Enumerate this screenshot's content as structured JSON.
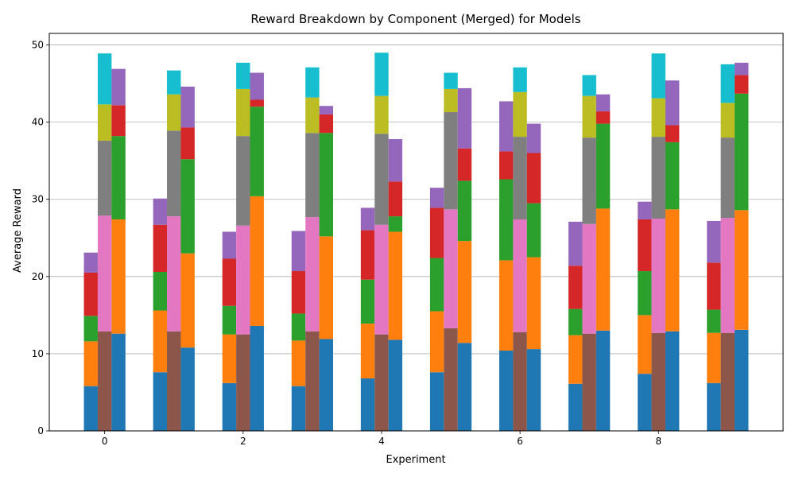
{
  "chart_data": {
    "type": "bar",
    "stacked": true,
    "title": "Reward Breakdown by Component (Merged) for Models",
    "xlabel": "Experiment",
    "ylabel": "Average Reward",
    "ylim": [
      0,
      51.5
    ],
    "xlim": [
      -0.8,
      9.8
    ],
    "yticks": [
      0,
      10,
      20,
      30,
      40,
      50
    ],
    "xticks": [
      0,
      2,
      4,
      6,
      8
    ],
    "grid": "y",
    "legend": "none",
    "experiments": [
      0,
      1,
      2,
      3,
      4,
      5,
      6,
      7,
      8,
      9
    ],
    "bar_offsets": [
      -0.2,
      0.0,
      0.2
    ],
    "bar_width": 0.2,
    "bars": [
      {
        "experiment": 0,
        "offset": -0.2,
        "segments": [
          {
            "color": "#1f77b4",
            "value": 5.8
          },
          {
            "color": "#ff7f0e",
            "value": 5.8
          },
          {
            "color": "#2ca02c",
            "value": 3.3
          },
          {
            "color": "#d62728",
            "value": 5.6
          },
          {
            "color": "#9467bd",
            "value": 2.6
          }
        ]
      },
      {
        "experiment": 0,
        "offset": 0.0,
        "segments": [
          {
            "color": "#8c564b",
            "value": 12.9
          },
          {
            "color": "#e377c2",
            "value": 15.0
          },
          {
            "color": "#7f7f7f",
            "value": 9.7
          },
          {
            "color": "#bcbd22",
            "value": 4.7
          },
          {
            "color": "#17becf",
            "value": 6.6
          }
        ]
      },
      {
        "experiment": 0,
        "offset": 0.2,
        "segments": [
          {
            "color": "#1f77b4",
            "value": 12.6
          },
          {
            "color": "#ff7f0e",
            "value": 14.8
          },
          {
            "color": "#2ca02c",
            "value": 10.8
          },
          {
            "color": "#d62728",
            "value": 4.0
          },
          {
            "color": "#9467bd",
            "value": 4.7
          }
        ]
      },
      {
        "experiment": 1,
        "offset": -0.2,
        "segments": [
          {
            "color": "#1f77b4",
            "value": 7.6
          },
          {
            "color": "#ff7f0e",
            "value": 8.0
          },
          {
            "color": "#2ca02c",
            "value": 5.0
          },
          {
            "color": "#d62728",
            "value": 6.1
          },
          {
            "color": "#9467bd",
            "value": 3.4
          }
        ]
      },
      {
        "experiment": 1,
        "offset": 0.0,
        "segments": [
          {
            "color": "#8c564b",
            "value": 12.9
          },
          {
            "color": "#e377c2",
            "value": 14.9
          },
          {
            "color": "#7f7f7f",
            "value": 11.1
          },
          {
            "color": "#bcbd22",
            "value": 4.7
          },
          {
            "color": "#17becf",
            "value": 3.1
          }
        ]
      },
      {
        "experiment": 1,
        "offset": 0.2,
        "segments": [
          {
            "color": "#1f77b4",
            "value": 10.8
          },
          {
            "color": "#ff7f0e",
            "value": 12.2
          },
          {
            "color": "#2ca02c",
            "value": 12.2
          },
          {
            "color": "#d62728",
            "value": 4.1
          },
          {
            "color": "#9467bd",
            "value": 5.3
          }
        ]
      },
      {
        "experiment": 2,
        "offset": -0.2,
        "segments": [
          {
            "color": "#1f77b4",
            "value": 6.2
          },
          {
            "color": "#ff7f0e",
            "value": 6.3
          },
          {
            "color": "#2ca02c",
            "value": 3.7
          },
          {
            "color": "#d62728",
            "value": 6.1
          },
          {
            "color": "#9467bd",
            "value": 3.5
          }
        ]
      },
      {
        "experiment": 2,
        "offset": 0.0,
        "segments": [
          {
            "color": "#8c564b",
            "value": 12.5
          },
          {
            "color": "#e377c2",
            "value": 14.1
          },
          {
            "color": "#7f7f7f",
            "value": 11.6
          },
          {
            "color": "#bcbd22",
            "value": 6.1
          },
          {
            "color": "#17becf",
            "value": 3.4
          }
        ]
      },
      {
        "experiment": 2,
        "offset": 0.2,
        "segments": [
          {
            "color": "#1f77b4",
            "value": 13.6
          },
          {
            "color": "#ff7f0e",
            "value": 16.8
          },
          {
            "color": "#2ca02c",
            "value": 11.6
          },
          {
            "color": "#d62728",
            "value": 0.9
          },
          {
            "color": "#9467bd",
            "value": 3.5
          }
        ]
      },
      {
        "experiment": 3,
        "offset": -0.2,
        "segments": [
          {
            "color": "#1f77b4",
            "value": 5.8
          },
          {
            "color": "#ff7f0e",
            "value": 5.9
          },
          {
            "color": "#2ca02c",
            "value": 3.5
          },
          {
            "color": "#d62728",
            "value": 5.5
          },
          {
            "color": "#9467bd",
            "value": 5.2
          }
        ]
      },
      {
        "experiment": 3,
        "offset": 0.0,
        "segments": [
          {
            "color": "#8c564b",
            "value": 12.9
          },
          {
            "color": "#e377c2",
            "value": 14.8
          },
          {
            "color": "#7f7f7f",
            "value": 10.9
          },
          {
            "color": "#bcbd22",
            "value": 4.6
          },
          {
            "color": "#17becf",
            "value": 3.9
          }
        ]
      },
      {
        "experiment": 3,
        "offset": 0.2,
        "segments": [
          {
            "color": "#1f77b4",
            "value": 11.9
          },
          {
            "color": "#ff7f0e",
            "value": 13.3
          },
          {
            "color": "#2ca02c",
            "value": 13.4
          },
          {
            "color": "#d62728",
            "value": 2.4
          },
          {
            "color": "#9467bd",
            "value": 1.1
          }
        ]
      },
      {
        "experiment": 4,
        "offset": -0.2,
        "segments": [
          {
            "color": "#1f77b4",
            "value": 6.8
          },
          {
            "color": "#ff7f0e",
            "value": 7.1
          },
          {
            "color": "#2ca02c",
            "value": 5.7
          },
          {
            "color": "#d62728",
            "value": 6.4
          },
          {
            "color": "#9467bd",
            "value": 2.9
          }
        ]
      },
      {
        "experiment": 4,
        "offset": 0.0,
        "segments": [
          {
            "color": "#8c564b",
            "value": 12.5
          },
          {
            "color": "#e377c2",
            "value": 14.2
          },
          {
            "color": "#7f7f7f",
            "value": 11.8
          },
          {
            "color": "#bcbd22",
            "value": 4.9
          },
          {
            "color": "#17becf",
            "value": 5.6
          }
        ]
      },
      {
        "experiment": 4,
        "offset": 0.2,
        "segments": [
          {
            "color": "#1f77b4",
            "value": 11.8
          },
          {
            "color": "#ff7f0e",
            "value": 14.0
          },
          {
            "color": "#2ca02c",
            "value": 2.0
          },
          {
            "color": "#d62728",
            "value": 4.5
          },
          {
            "color": "#9467bd",
            "value": 5.5
          }
        ]
      },
      {
        "experiment": 5,
        "offset": -0.2,
        "segments": [
          {
            "color": "#1f77b4",
            "value": 7.6
          },
          {
            "color": "#ff7f0e",
            "value": 7.9
          },
          {
            "color": "#2ca02c",
            "value": 6.9
          },
          {
            "color": "#d62728",
            "value": 6.5
          },
          {
            "color": "#9467bd",
            "value": 2.6
          }
        ]
      },
      {
        "experiment": 5,
        "offset": 0.0,
        "segments": [
          {
            "color": "#8c564b",
            "value": 13.3
          },
          {
            "color": "#e377c2",
            "value": 15.4
          },
          {
            "color": "#7f7f7f",
            "value": 12.6
          },
          {
            "color": "#bcbd22",
            "value": 3.0
          },
          {
            "color": "#17becf",
            "value": 2.1
          }
        ]
      },
      {
        "experiment": 5,
        "offset": 0.2,
        "segments": [
          {
            "color": "#1f77b4",
            "value": 11.4
          },
          {
            "color": "#ff7f0e",
            "value": 13.2
          },
          {
            "color": "#2ca02c",
            "value": 7.8
          },
          {
            "color": "#d62728",
            "value": 4.2
          },
          {
            "color": "#9467bd",
            "value": 7.8
          }
        ]
      },
      {
        "experiment": 6,
        "offset": -0.2,
        "segments": [
          {
            "color": "#1f77b4",
            "value": 10.4
          },
          {
            "color": "#ff7f0e",
            "value": 11.7
          },
          {
            "color": "#2ca02c",
            "value": 10.5
          },
          {
            "color": "#d62728",
            "value": 3.6
          },
          {
            "color": "#9467bd",
            "value": 6.5
          }
        ]
      },
      {
        "experiment": 6,
        "offset": 0.0,
        "segments": [
          {
            "color": "#8c564b",
            "value": 12.8
          },
          {
            "color": "#e377c2",
            "value": 14.6
          },
          {
            "color": "#7f7f7f",
            "value": 10.7
          },
          {
            "color": "#bcbd22",
            "value": 5.8
          },
          {
            "color": "#17becf",
            "value": 3.2
          }
        ]
      },
      {
        "experiment": 6,
        "offset": 0.2,
        "segments": [
          {
            "color": "#1f77b4",
            "value": 10.6
          },
          {
            "color": "#ff7f0e",
            "value": 11.9
          },
          {
            "color": "#2ca02c",
            "value": 7.0
          },
          {
            "color": "#d62728",
            "value": 6.5
          },
          {
            "color": "#9467bd",
            "value": 3.8
          }
        ]
      },
      {
        "experiment": 7,
        "offset": -0.2,
        "segments": [
          {
            "color": "#1f77b4",
            "value": 6.1
          },
          {
            "color": "#ff7f0e",
            "value": 6.3
          },
          {
            "color": "#2ca02c",
            "value": 3.4
          },
          {
            "color": "#d62728",
            "value": 5.6
          },
          {
            "color": "#9467bd",
            "value": 5.7
          }
        ]
      },
      {
        "experiment": 7,
        "offset": 0.0,
        "segments": [
          {
            "color": "#8c564b",
            "value": 12.6
          },
          {
            "color": "#e377c2",
            "value": 14.2
          },
          {
            "color": "#7f7f7f",
            "value": 11.2
          },
          {
            "color": "#bcbd22",
            "value": 5.4
          },
          {
            "color": "#17becf",
            "value": 2.7
          }
        ]
      },
      {
        "experiment": 7,
        "offset": 0.2,
        "segments": [
          {
            "color": "#1f77b4",
            "value": 13.0
          },
          {
            "color": "#ff7f0e",
            "value": 15.8
          },
          {
            "color": "#2ca02c",
            "value": 11.0
          },
          {
            "color": "#d62728",
            "value": 1.6
          },
          {
            "color": "#9467bd",
            "value": 2.2
          }
        ]
      },
      {
        "experiment": 8,
        "offset": -0.2,
        "segments": [
          {
            "color": "#1f77b4",
            "value": 7.4
          },
          {
            "color": "#ff7f0e",
            "value": 7.6
          },
          {
            "color": "#2ca02c",
            "value": 5.7
          },
          {
            "color": "#d62728",
            "value": 6.7
          },
          {
            "color": "#9467bd",
            "value": 2.3
          }
        ]
      },
      {
        "experiment": 8,
        "offset": 0.0,
        "segments": [
          {
            "color": "#8c564b",
            "value": 12.7
          },
          {
            "color": "#e377c2",
            "value": 14.8
          },
          {
            "color": "#7f7f7f",
            "value": 10.6
          },
          {
            "color": "#bcbd22",
            "value": 5.0
          },
          {
            "color": "#17becf",
            "value": 5.8
          }
        ]
      },
      {
        "experiment": 8,
        "offset": 0.2,
        "segments": [
          {
            "color": "#1f77b4",
            "value": 12.9
          },
          {
            "color": "#ff7f0e",
            "value": 15.8
          },
          {
            "color": "#2ca02c",
            "value": 8.7
          },
          {
            "color": "#d62728",
            "value": 2.2
          },
          {
            "color": "#9467bd",
            "value": 5.8
          }
        ]
      },
      {
        "experiment": 9,
        "offset": -0.2,
        "segments": [
          {
            "color": "#1f77b4",
            "value": 6.2
          },
          {
            "color": "#ff7f0e",
            "value": 6.5
          },
          {
            "color": "#2ca02c",
            "value": 3.0
          },
          {
            "color": "#d62728",
            "value": 6.1
          },
          {
            "color": "#9467bd",
            "value": 5.4
          }
        ]
      },
      {
        "experiment": 9,
        "offset": 0.0,
        "segments": [
          {
            "color": "#8c564b",
            "value": 12.7
          },
          {
            "color": "#e377c2",
            "value": 14.9
          },
          {
            "color": "#7f7f7f",
            "value": 10.4
          },
          {
            "color": "#bcbd22",
            "value": 4.5
          },
          {
            "color": "#17becf",
            "value": 5.0
          }
        ]
      },
      {
        "experiment": 9,
        "offset": 0.2,
        "segments": [
          {
            "color": "#1f77b4",
            "value": 13.1
          },
          {
            "color": "#ff7f0e",
            "value": 15.5
          },
          {
            "color": "#2ca02c",
            "value": 15.1
          },
          {
            "color": "#d62728",
            "value": 2.4
          },
          {
            "color": "#9467bd",
            "value": 1.6
          }
        ]
      }
    ]
  }
}
